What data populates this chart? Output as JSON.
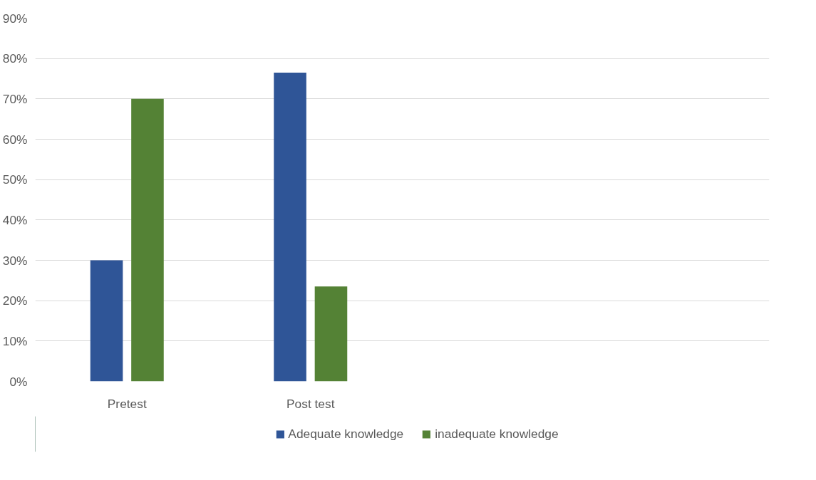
{
  "chart_data": {
    "type": "bar",
    "categories": [
      "Pretest",
      "Post test",
      null,
      null
    ],
    "series": [
      {
        "name": "Adequate knowledge",
        "color": "#2f5597",
        "values": [
          30,
          76.5,
          null,
          null
        ]
      },
      {
        "name": "inadequate knowledge",
        "color": "#548235",
        "values": [
          70,
          23.5,
          null,
          null
        ]
      }
    ],
    "ylim": [
      0,
      90
    ],
    "yticks": [
      {
        "value": 0,
        "label": "0%"
      },
      {
        "value": 10,
        "label": "10%"
      },
      {
        "value": 20,
        "label": "20%"
      },
      {
        "value": 30,
        "label": "30%"
      },
      {
        "value": 40,
        "label": "40%"
      },
      {
        "value": 50,
        "label": "50%"
      },
      {
        "value": 60,
        "label": "60%"
      },
      {
        "value": 70,
        "label": "70%"
      },
      {
        "value": 80,
        "label": "80%"
      },
      {
        "value": 90,
        "label": "90%"
      }
    ],
    "grid": "y",
    "legend": "bottom"
  }
}
